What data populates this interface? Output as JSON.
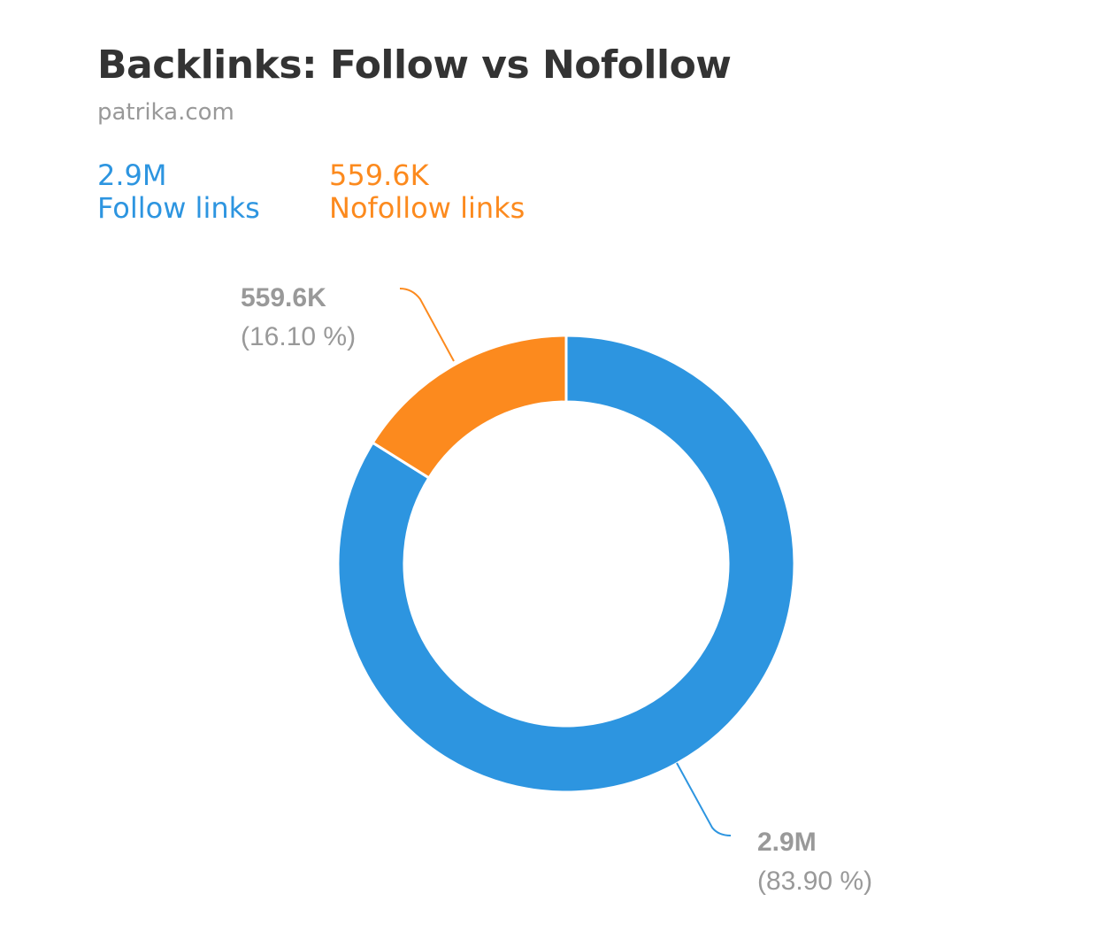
{
  "chart_data": {
    "type": "pie",
    "variant": "donut",
    "title": "Backlinks: Follow vs Nofollow",
    "subtitle": "patrika.com",
    "legend_placement": "top-left",
    "series": [
      {
        "name": "Follow links",
        "value_label": "2.9M",
        "percent": 83.9,
        "percent_label": "(83.90 %)",
        "color": "#2d95e0"
      },
      {
        "name": "Nofollow links",
        "value_label": "559.6K",
        "percent": 16.1,
        "percent_label": "(16.10 %)",
        "color": "#fc8a1e"
      }
    ]
  }
}
